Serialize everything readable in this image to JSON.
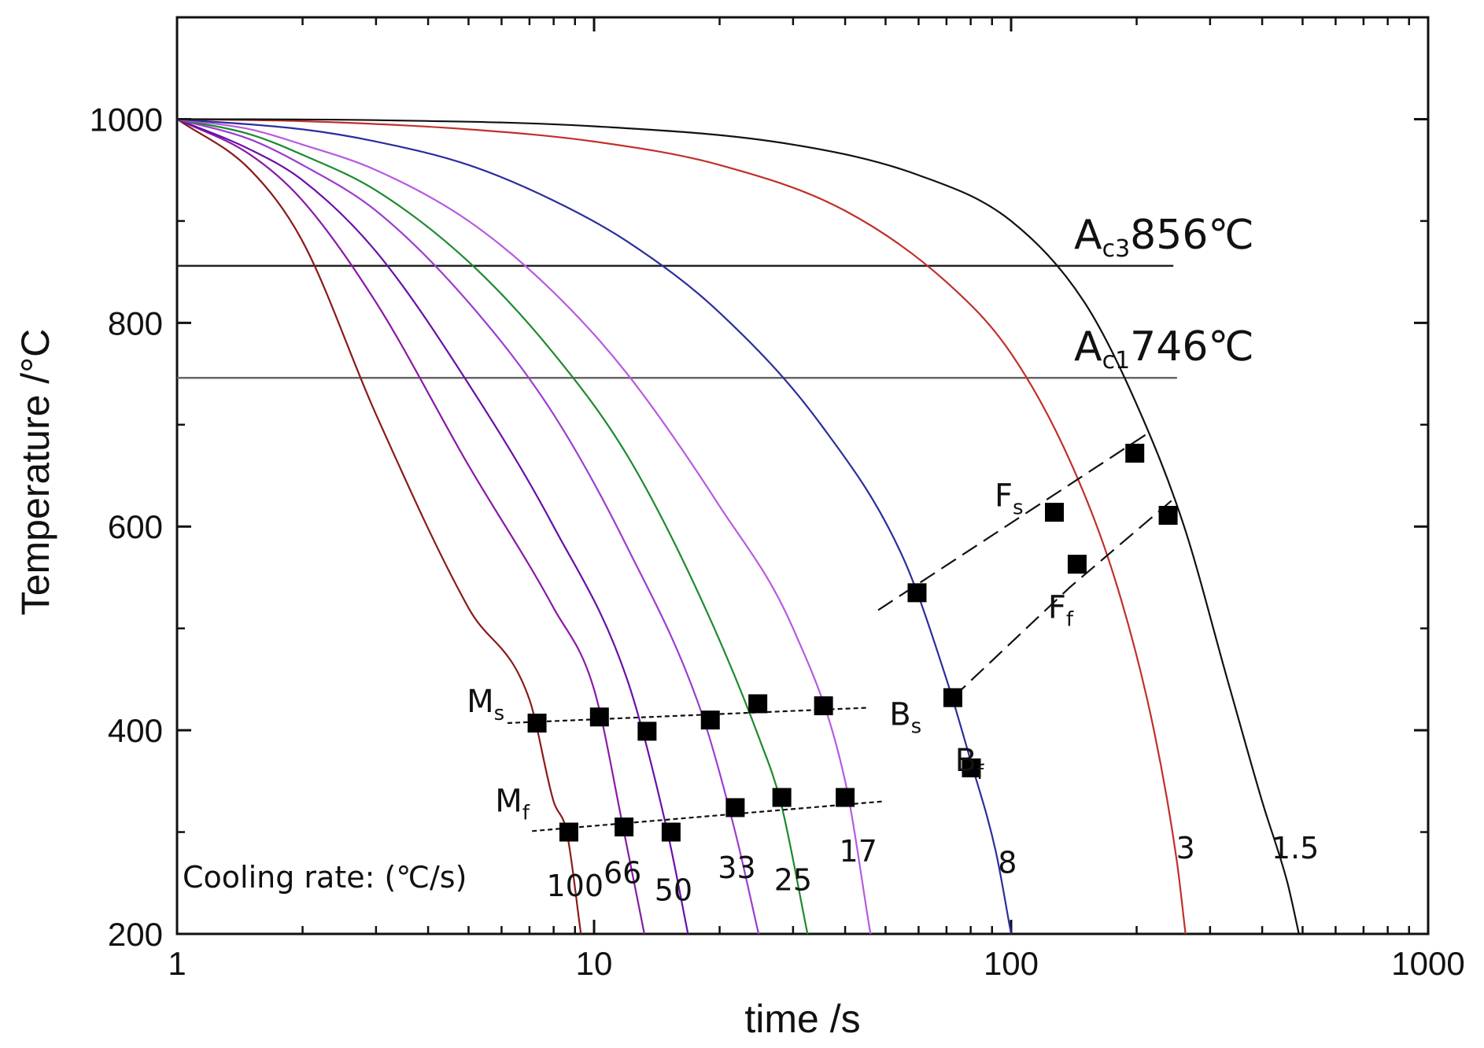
{
  "chart_data": {
    "type": "line",
    "title": "",
    "xlabel": "time /s",
    "ylabel": "Temperature /°C",
    "x_scale": "log",
    "xlim": [
      1,
      1000
    ],
    "ylim": [
      200,
      1100
    ],
    "x_ticks": [
      {
        "value": 1,
        "label": "1"
      },
      {
        "value": 10,
        "label": "10"
      },
      {
        "value": 100,
        "label": "100"
      },
      {
        "value": 1000,
        "label": "1000"
      }
    ],
    "y_ticks": [
      {
        "value": 200,
        "label": "200"
      },
      {
        "value": 400,
        "label": "400"
      },
      {
        "value": 600,
        "label": "600"
      },
      {
        "value": 800,
        "label": "800"
      },
      {
        "value": 1000,
        "label": "1000"
      }
    ],
    "series": [
      {
        "name": "100",
        "color": "#8b1a1a",
        "points": [
          [
            1,
            1000
          ],
          [
            1.5,
            950
          ],
          [
            2,
            880
          ],
          [
            3,
            710
          ],
          [
            5,
            520
          ],
          [
            7,
            430
          ],
          [
            8,
            330
          ],
          [
            8.6,
            300
          ],
          [
            9.3,
            200
          ]
        ]
      },
      {
        "name": "66",
        "color": "#8a1aa6",
        "points": [
          [
            1,
            1000
          ],
          [
            1.5,
            965
          ],
          [
            2,
            920
          ],
          [
            3,
            820
          ],
          [
            5,
            660
          ],
          [
            8,
            520
          ],
          [
            10,
            440
          ],
          [
            11.8,
            300
          ],
          [
            13.2,
            200
          ]
        ]
      },
      {
        "name": "50",
        "color": "#6a0fa8",
        "points": [
          [
            1,
            1000
          ],
          [
            1.5,
            970
          ],
          [
            2,
            940
          ],
          [
            3,
            870
          ],
          [
            5,
            740
          ],
          [
            8,
            600
          ],
          [
            12,
            450
          ],
          [
            15,
            300
          ],
          [
            16.8,
            200
          ]
        ]
      },
      {
        "name": "33",
        "color": "#9b3dd1",
        "points": [
          [
            1,
            1000
          ],
          [
            1.5,
            980
          ],
          [
            2,
            955
          ],
          [
            3,
            910
          ],
          [
            5,
            820
          ],
          [
            8,
            710
          ],
          [
            12,
            580
          ],
          [
            18,
            420
          ],
          [
            21.8,
            300
          ],
          [
            24.8,
            200
          ]
        ]
      },
      {
        "name": "25",
        "color": "#1e8a2e",
        "points": [
          [
            1,
            1000
          ],
          [
            1.5,
            985
          ],
          [
            2,
            965
          ],
          [
            3,
            930
          ],
          [
            5,
            860
          ],
          [
            8,
            770
          ],
          [
            12,
            670
          ],
          [
            18,
            530
          ],
          [
            25,
            390
          ],
          [
            28,
            330
          ],
          [
            32.5,
            200
          ]
        ]
      },
      {
        "name": "17",
        "color": "#b85ae0",
        "points": [
          [
            1,
            1000
          ],
          [
            1.5,
            990
          ],
          [
            2,
            975
          ],
          [
            3,
            950
          ],
          [
            5,
            900
          ],
          [
            8,
            830
          ],
          [
            12,
            750
          ],
          [
            20,
            620
          ],
          [
            30,
            500
          ],
          [
            40,
            350
          ],
          [
            46,
            200
          ]
        ]
      },
      {
        "name": "8",
        "color": "#2b2e9e",
        "points": [
          [
            1,
            1000
          ],
          [
            2,
            990
          ],
          [
            3,
            978
          ],
          [
            5,
            955
          ],
          [
            8,
            920
          ],
          [
            12,
            880
          ],
          [
            20,
            810
          ],
          [
            35,
            700
          ],
          [
            55,
            570
          ],
          [
            70,
            450
          ],
          [
            80,
            370
          ],
          [
            92,
            280
          ],
          [
            100,
            200
          ]
        ]
      },
      {
        "name": "3",
        "color": "#c0302a",
        "points": [
          [
            1,
            1000
          ],
          [
            2,
            998
          ],
          [
            5,
            990
          ],
          [
            10,
            978
          ],
          [
            20,
            955
          ],
          [
            40,
            910
          ],
          [
            70,
            840
          ],
          [
            100,
            770
          ],
          [
            140,
            660
          ],
          [
            180,
            540
          ],
          [
            220,
            400
          ],
          [
            250,
            270
          ],
          [
            262,
            200
          ]
        ]
      },
      {
        "name": "1.5",
        "color": "#111111",
        "points": [
          [
            1,
            1000
          ],
          [
            3,
            999
          ],
          [
            10,
            993
          ],
          [
            30,
            975
          ],
          [
            60,
            945
          ],
          [
            100,
            900
          ],
          [
            150,
            820
          ],
          [
            200,
            720
          ],
          [
            260,
            600
          ],
          [
            330,
            450
          ],
          [
            400,
            330
          ],
          [
            460,
            250
          ],
          [
            490,
            200
          ]
        ]
      }
    ],
    "reference_lines": [
      {
        "label_main": "A",
        "label_sub": "c3",
        "label_value": "856℃",
        "y": 856,
        "x_start": 1,
        "x_end": 245
      },
      {
        "label_main": "A",
        "label_sub": "c1",
        "label_value": "746℃",
        "y": 746,
        "x_start": 1,
        "x_end": 250
      }
    ],
    "transformation_points": [
      {
        "x": 7.3,
        "y": 407
      },
      {
        "x": 10.3,
        "y": 413
      },
      {
        "x": 13.4,
        "y": 399
      },
      {
        "x": 19,
        "y": 410
      },
      {
        "x": 24.7,
        "y": 426
      },
      {
        "x": 35.5,
        "y": 424
      },
      {
        "x": 8.7,
        "y": 300
      },
      {
        "x": 11.8,
        "y": 305
      },
      {
        "x": 15.3,
        "y": 300
      },
      {
        "x": 21.8,
        "y": 324
      },
      {
        "x": 28.2,
        "y": 334
      },
      {
        "x": 40,
        "y": 334
      },
      {
        "x": 59.5,
        "y": 535
      },
      {
        "x": 127,
        "y": 614
      },
      {
        "x": 198,
        "y": 672
      },
      {
        "x": 144,
        "y": 563
      },
      {
        "x": 238,
        "y": 611
      },
      {
        "x": 72.5,
        "y": 432
      },
      {
        "x": 80.3,
        "y": 363
      }
    ],
    "boundary_lines": [
      {
        "name": "Ms",
        "dash": "6 4",
        "points": [
          [
            6.2,
            407
          ],
          [
            45,
            422
          ]
        ]
      },
      {
        "name": "Mf",
        "dash": "6 4",
        "points": [
          [
            7.1,
            301
          ],
          [
            49,
            330
          ]
        ]
      },
      {
        "name": "Fs",
        "dash": "22 10",
        "points": [
          [
            48,
            518
          ],
          [
            210,
            690
          ]
        ]
      },
      {
        "name": "Ff",
        "dash": "22 10",
        "points": [
          [
            72.5,
            432
          ],
          [
            138,
            540
          ],
          [
            250,
            630
          ]
        ]
      }
    ],
    "annotations": [
      {
        "main": "M",
        "sub": "s",
        "x": 6.1,
        "y": 418
      },
      {
        "main": "M",
        "sub": "f",
        "x": 7.0,
        "y": 320
      },
      {
        "main": "F",
        "sub": "s",
        "x": 107,
        "y": 620
      },
      {
        "main": "F",
        "sub": "f",
        "x": 141,
        "y": 510
      },
      {
        "main": "B",
        "sub": "s",
        "x": 61,
        "y": 405
      },
      {
        "main": "B",
        "sub": "f",
        "x": 86,
        "y": 360
      }
    ],
    "cooling_rate_title": "Cooling rate: (℃/s)",
    "cooling_rate_labels": [
      {
        "text": "100",
        "x": 9.0,
        "y": 237
      },
      {
        "text": "66",
        "x": 11.7,
        "y": 250
      },
      {
        "text": "50",
        "x": 15.5,
        "y": 233
      },
      {
        "text": "33",
        "x": 22.0,
        "y": 255
      },
      {
        "text": "25",
        "x": 30.0,
        "y": 243
      },
      {
        "text": "17",
        "x": 43.0,
        "y": 271
      },
      {
        "text": "8",
        "x": 98.0,
        "y": 260
      },
      {
        "text": "3",
        "x": 262.0,
        "y": 274
      },
      {
        "text": "1.5",
        "x": 480.0,
        "y": 274
      }
    ]
  }
}
